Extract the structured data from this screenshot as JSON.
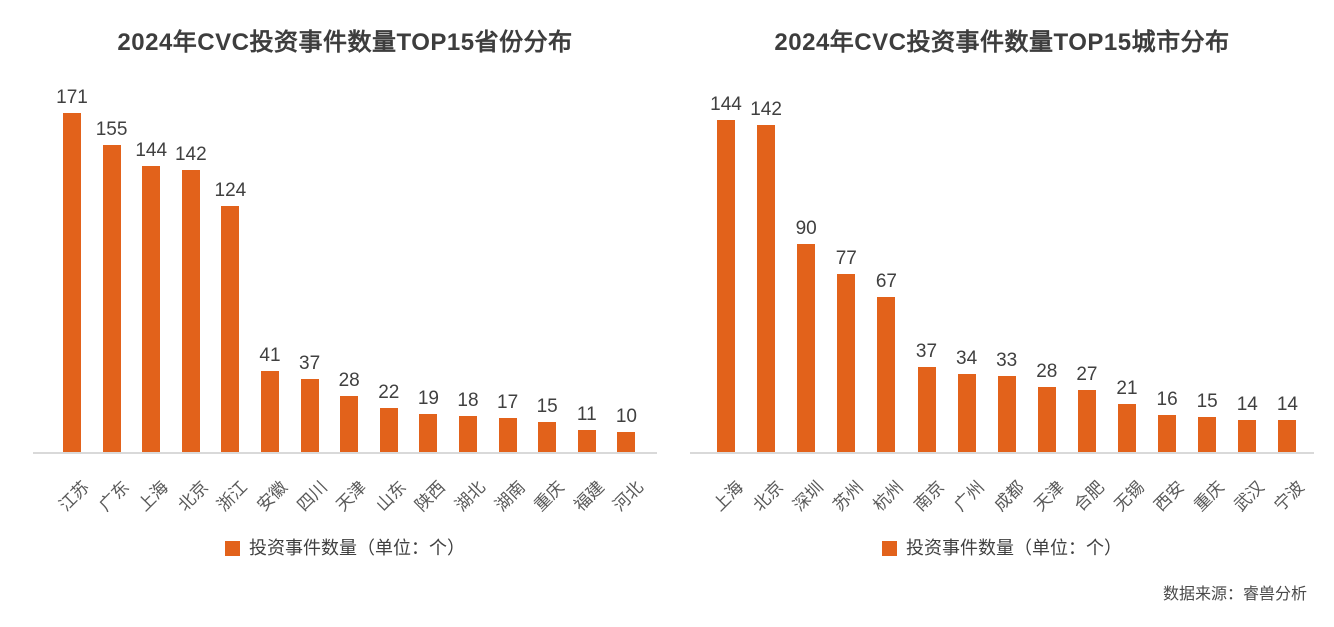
{
  "source_note": "数据来源：睿兽分析",
  "colors": {
    "bar": "#E2621B",
    "title_text": "#3D3D3D",
    "value_text": "#404040",
    "axis_text": "#595959",
    "baseline": "#D9D9D9",
    "source_text": "#4A4A4A",
    "background": "#FFFFFF"
  },
  "chart_data": [
    {
      "type": "bar",
      "title": "2024年CVC投资事件数量TOP15省份分布",
      "categories": [
        "江苏",
        "广东",
        "上海",
        "北京",
        "浙江",
        "安徽",
        "四川",
        "天津",
        "山东",
        "陕西",
        "湖北",
        "湖南",
        "重庆",
        "福建",
        "河北"
      ],
      "values": [
        171,
        155,
        144,
        142,
        124,
        41,
        37,
        28,
        22,
        19,
        18,
        17,
        15,
        11,
        10
      ],
      "legend": "投资事件数量（单位：个）",
      "bar_color": "#E2621B",
      "xlabel": "",
      "ylabel": "",
      "ylim": [
        0,
        185
      ],
      "grid": false,
      "y_axis_visible": false,
      "value_labels": true,
      "legend_position": "bottom"
    },
    {
      "type": "bar",
      "title": "2024年CVC投资事件数量TOP15城市分布",
      "categories": [
        "上海",
        "北京",
        "深圳",
        "苏州",
        "杭州",
        "南京",
        "广州",
        "成都",
        "天津",
        "合肥",
        "无锡",
        "西安",
        "重庆",
        "武汉",
        "宁波"
      ],
      "values": [
        144,
        142,
        90,
        77,
        67,
        37,
        34,
        33,
        28,
        27,
        21,
        16,
        15,
        14,
        14
      ],
      "legend": "投资事件数量（单位：个）",
      "bar_color": "#E2621B",
      "xlabel": "",
      "ylabel": "",
      "ylim": [
        0,
        160
      ],
      "grid": false,
      "y_axis_visible": false,
      "value_labels": true,
      "legend_position": "bottom"
    }
  ]
}
